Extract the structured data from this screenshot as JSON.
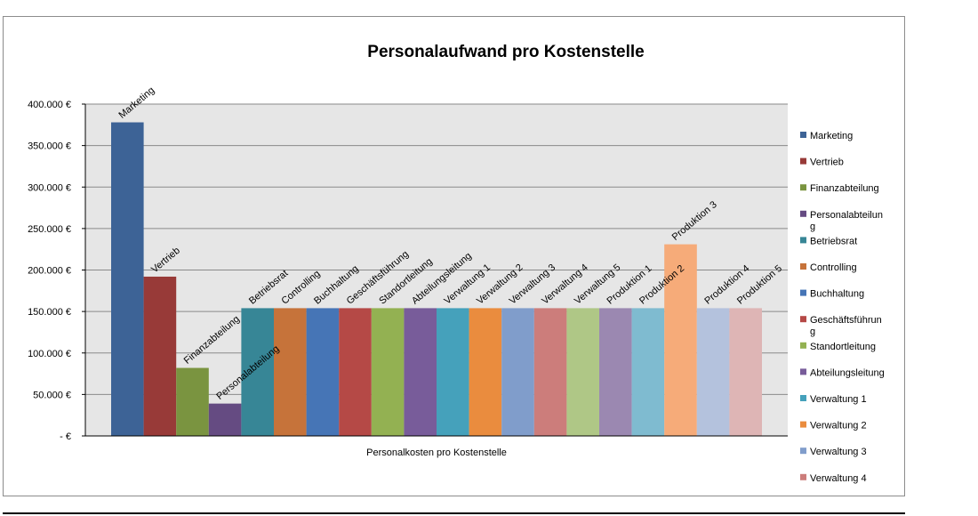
{
  "chart_data": {
    "type": "bar",
    "title": "Personalaufwand pro Kostenstelle",
    "xlabel": "Personalkosten pro Kostenstelle",
    "ylabel": "",
    "ylim": [
      0,
      400000
    ],
    "yticks": [
      {
        "value": 0,
        "label": "- €"
      },
      {
        "value": 50000,
        "label": "50.000 €"
      },
      {
        "value": 100000,
        "label": "100.000 €"
      },
      {
        "value": 150000,
        "label": "150.000 €"
      },
      {
        "value": 200000,
        "label": "200.000 €"
      },
      {
        "value": 250000,
        "label": "250.000 €"
      },
      {
        "value": 300000,
        "label": "300.000 €"
      },
      {
        "value": 350000,
        "label": "350.000 €"
      },
      {
        "value": 400000,
        "label": "400.000 €"
      }
    ],
    "grid": true,
    "legend_position": "right",
    "series": [
      {
        "name": "Marketing",
        "value": 378000,
        "color": "#3d6396"
      },
      {
        "name": "Vertrieb",
        "value": 192000,
        "color": "#983a38"
      },
      {
        "name": "Finanzabteilung",
        "value": 82000,
        "color": "#7a9440"
      },
      {
        "name": "Personalabteilung",
        "value": 39000,
        "color": "#654b82"
      },
      {
        "name": "Betriebsrat",
        "value": 154000,
        "color": "#378696"
      },
      {
        "name": "Controlling",
        "value": 154000,
        "color": "#c6733a"
      },
      {
        "name": "Buchhaltung",
        "value": 154000,
        "color": "#4675b6"
      },
      {
        "name": "Geschäftsführung",
        "value": 154000,
        "color": "#b54946"
      },
      {
        "name": "Standortleitung",
        "value": 154000,
        "color": "#93b152"
      },
      {
        "name": "Abteilungsleitung",
        "value": 154000,
        "color": "#785c9a"
      },
      {
        "name": "Verwaltung 1",
        "value": 154000,
        "color": "#45a1bb"
      },
      {
        "name": "Verwaltung 2",
        "value": 154000,
        "color": "#ea8c3e"
      },
      {
        "name": "Verwaltung 3",
        "value": 154000,
        "color": "#809dcb"
      },
      {
        "name": "Verwaltung 4",
        "value": 154000,
        "color": "#cc7d7b"
      },
      {
        "name": "Verwaltung 5",
        "value": 154000,
        "color": "#afc786"
      },
      {
        "name": "Produktion 1",
        "value": 154000,
        "color": "#9b88b1"
      },
      {
        "name": "Produktion 2",
        "value": 154000,
        "color": "#7fbbd0"
      },
      {
        "name": "Produktion 3",
        "value": 231000,
        "color": "#f6ab79"
      },
      {
        "name": "Produktion 4",
        "value": 154000,
        "color": "#b4c2dd"
      },
      {
        "name": "Produktion 5",
        "value": 154000,
        "color": "#deb5b5"
      }
    ],
    "legend_entries": [
      "Marketing",
      "Vertrieb",
      "Finanzabteilung",
      "Personalabteilun|g",
      "Betriebsrat",
      "Controlling",
      "Buchhaltung",
      "Geschäftsführun|g",
      "Standortleitung",
      "Abteilungsleitung",
      "Verwaltung 1",
      "Verwaltung 2",
      "Verwaltung 3",
      "Verwaltung 4"
    ]
  }
}
